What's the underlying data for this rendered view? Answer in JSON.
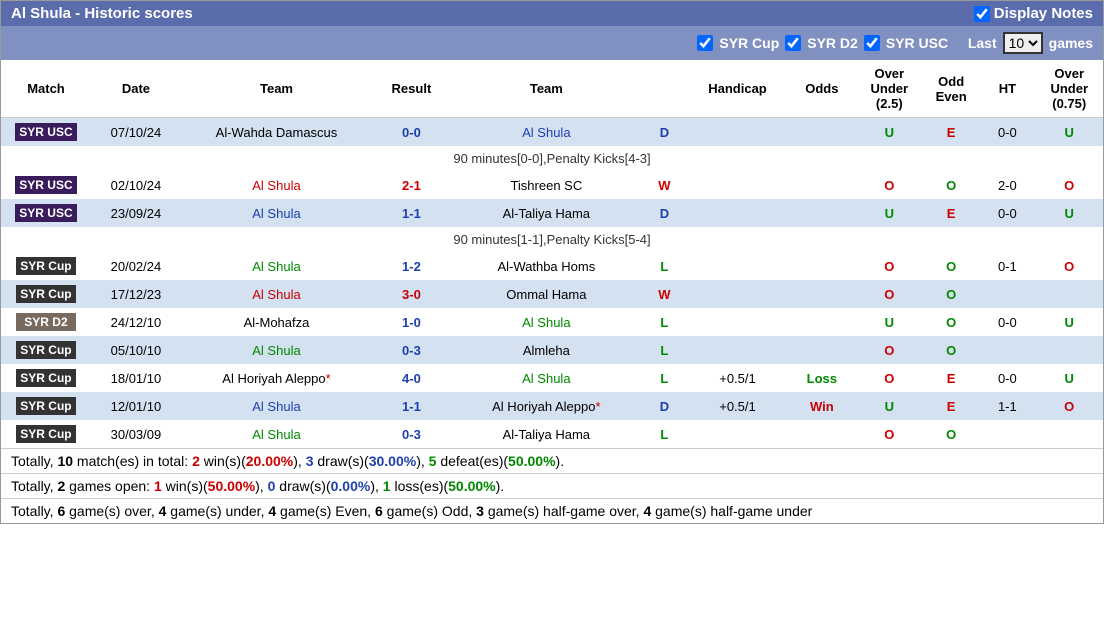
{
  "header": {
    "title": "Al Shula - Historic scores",
    "display_notes": "Display Notes"
  },
  "filters": {
    "cup": "SYR Cup",
    "d2": "SYR D2",
    "usc": "SYR USC",
    "last_prefix": "Last",
    "last_value": "10",
    "last_suffix": "games"
  },
  "columns": {
    "match": "Match",
    "date": "Date",
    "team1": "Team",
    "result": "Result",
    "team2": "Team",
    "handicap": "Handicap",
    "odds": "Odds",
    "over_under_25": "Over Under (2.5)",
    "odd_even": "Odd Even",
    "ht": "HT",
    "over_under_075": "Over Under (0.75)"
  },
  "rows": [
    {
      "badge": "SYR USC",
      "badge_cls": "badge-usc",
      "date": "07/10/24",
      "t1": "Al-Wahda Damascus",
      "t1_cls": "black",
      "res": "0-0",
      "res_cls": "blue",
      "t2": "Al Shula",
      "t2_cls": "blue-team",
      "wld": "D",
      "wld_cls": "blue",
      "hcap": "",
      "odds": "",
      "odds_cls": "",
      "ou25": "U",
      "ou25_cls": "green",
      "oe": "E",
      "oe_cls": "red",
      "ht": "0-0",
      "ou075": "U",
      "ou075_cls": "green",
      "row_cls": "row-odd",
      "note": "90 minutes[0-0],Penalty Kicks[4-3]"
    },
    {
      "badge": "SYR USC",
      "badge_cls": "badge-usc",
      "date": "02/10/24",
      "t1": "Al Shula",
      "t1_cls": "red-team",
      "res": "2-1",
      "res_cls": "red",
      "t2": "Tishreen SC",
      "t2_cls": "black",
      "wld": "W",
      "wld_cls": "red",
      "hcap": "",
      "odds": "",
      "odds_cls": "",
      "ou25": "O",
      "ou25_cls": "red",
      "oe": "O",
      "oe_cls": "green",
      "ht": "2-0",
      "ou075": "O",
      "ou075_cls": "red",
      "row_cls": "row-even"
    },
    {
      "badge": "SYR USC",
      "badge_cls": "badge-usc",
      "date": "23/09/24",
      "t1": "Al Shula",
      "t1_cls": "blue-team",
      "res": "1-1",
      "res_cls": "blue",
      "t2": "Al-Taliya Hama",
      "t2_cls": "black",
      "wld": "D",
      "wld_cls": "blue",
      "hcap": "",
      "odds": "",
      "odds_cls": "",
      "ou25": "U",
      "ou25_cls": "green",
      "oe": "E",
      "oe_cls": "red",
      "ht": "0-0",
      "ou075": "U",
      "ou075_cls": "green",
      "row_cls": "row-odd",
      "note": "90 minutes[1-1],Penalty Kicks[5-4]"
    },
    {
      "badge": "SYR Cup",
      "badge_cls": "badge-cup",
      "date": "20/02/24",
      "t1": "Al Shula",
      "t1_cls": "green-team",
      "res": "1-2",
      "res_cls": "blue",
      "t2": "Al-Wathba Homs",
      "t2_cls": "black",
      "wld": "L",
      "wld_cls": "green",
      "hcap": "",
      "odds": "",
      "odds_cls": "",
      "ou25": "O",
      "ou25_cls": "red",
      "oe": "O",
      "oe_cls": "green",
      "ht": "0-1",
      "ou075": "O",
      "ou075_cls": "red",
      "row_cls": "row-even"
    },
    {
      "badge": "SYR Cup",
      "badge_cls": "badge-cup",
      "date": "17/12/23",
      "t1": "Al Shula",
      "t1_cls": "red-team",
      "res": "3-0",
      "res_cls": "red",
      "t2": "Ommal Hama",
      "t2_cls": "black",
      "wld": "W",
      "wld_cls": "red",
      "hcap": "",
      "odds": "",
      "odds_cls": "",
      "ou25": "O",
      "ou25_cls": "red",
      "oe": "O",
      "oe_cls": "green",
      "ht": "",
      "ou075": "",
      "ou075_cls": "",
      "row_cls": "row-odd"
    },
    {
      "badge": "SYR D2",
      "badge_cls": "badge-d2",
      "date": "24/12/10",
      "t1": "Al-Mohafza",
      "t1_cls": "black",
      "res": "1-0",
      "res_cls": "blue",
      "t2": "Al Shula",
      "t2_cls": "green-team",
      "wld": "L",
      "wld_cls": "green",
      "hcap": "",
      "odds": "",
      "odds_cls": "",
      "ou25": "U",
      "ou25_cls": "green",
      "oe": "O",
      "oe_cls": "green",
      "ht": "0-0",
      "ou075": "U",
      "ou075_cls": "green",
      "row_cls": "row-even"
    },
    {
      "badge": "SYR Cup",
      "badge_cls": "badge-cup",
      "date": "05/10/10",
      "t1": "Al Shula",
      "t1_cls": "green-team",
      "res": "0-3",
      "res_cls": "blue",
      "t2": "Almleha",
      "t2_cls": "black",
      "wld": "L",
      "wld_cls": "green",
      "hcap": "",
      "odds": "",
      "odds_cls": "",
      "ou25": "O",
      "ou25_cls": "red",
      "oe": "O",
      "oe_cls": "green",
      "ht": "",
      "ou075": "",
      "ou075_cls": "",
      "row_cls": "row-odd"
    },
    {
      "badge": "SYR Cup",
      "badge_cls": "badge-cup",
      "date": "18/01/10",
      "t1": "Al Horiyah Aleppo",
      "t1_cls": "black",
      "t1_star": "*",
      "res": "4-0",
      "res_cls": "blue",
      "t2": "Al Shula",
      "t2_cls": "green-team",
      "wld": "L",
      "wld_cls": "green",
      "hcap": "+0.5/1",
      "odds": "Loss",
      "odds_cls": "green",
      "ou25": "O",
      "ou25_cls": "red",
      "oe": "E",
      "oe_cls": "red",
      "ht": "0-0",
      "ou075": "U",
      "ou075_cls": "green",
      "row_cls": "row-even"
    },
    {
      "badge": "SYR Cup",
      "badge_cls": "badge-cup",
      "date": "12/01/10",
      "t1": "Al Shula",
      "t1_cls": "blue-team",
      "res": "1-1",
      "res_cls": "blue",
      "t2": "Al Horiyah Aleppo",
      "t2_cls": "black",
      "t2_star": "*",
      "wld": "D",
      "wld_cls": "blue",
      "hcap": "+0.5/1",
      "odds": "Win",
      "odds_cls": "red",
      "ou25": "U",
      "ou25_cls": "green",
      "oe": "E",
      "oe_cls": "red",
      "ht": "1-1",
      "ou075": "O",
      "ou075_cls": "red",
      "row_cls": "row-odd"
    },
    {
      "badge": "SYR Cup",
      "badge_cls": "badge-cup",
      "date": "30/03/09",
      "t1": "Al Shula",
      "t1_cls": "green-team",
      "res": "0-3",
      "res_cls": "blue",
      "t2": "Al-Taliya Hama",
      "t2_cls": "black",
      "wld": "L",
      "wld_cls": "green",
      "hcap": "",
      "odds": "",
      "odds_cls": "",
      "ou25": "O",
      "ou25_cls": "red",
      "oe": "O",
      "oe_cls": "green",
      "ht": "",
      "ou075": "",
      "ou075_cls": "",
      "row_cls": "row-even"
    }
  ],
  "summary": {
    "line1_parts": [
      "Totally, ",
      "10",
      " match(es) in total: ",
      "2",
      " win(s)(",
      "20.00%",
      "), ",
      "3",
      " draw(s)(",
      "30.00%",
      "), ",
      "5",
      " defeat(es)(",
      "50.00%",
      ")."
    ],
    "line2_parts": [
      "Totally, ",
      "2",
      " games open: ",
      "1",
      " win(s)(",
      "50.00%",
      "), ",
      "0",
      " draw(s)(",
      "0.00%",
      "), ",
      "1",
      " loss(es)(",
      "50.00%",
      ")."
    ],
    "line3_parts": [
      "Totally, ",
      "6",
      " game(s) over, ",
      "4",
      " game(s) under, ",
      "4",
      " game(s) Even, ",
      "6",
      " game(s) Odd, ",
      "3",
      " game(s) half-game over, ",
      "4",
      " game(s) half-game under"
    ]
  }
}
